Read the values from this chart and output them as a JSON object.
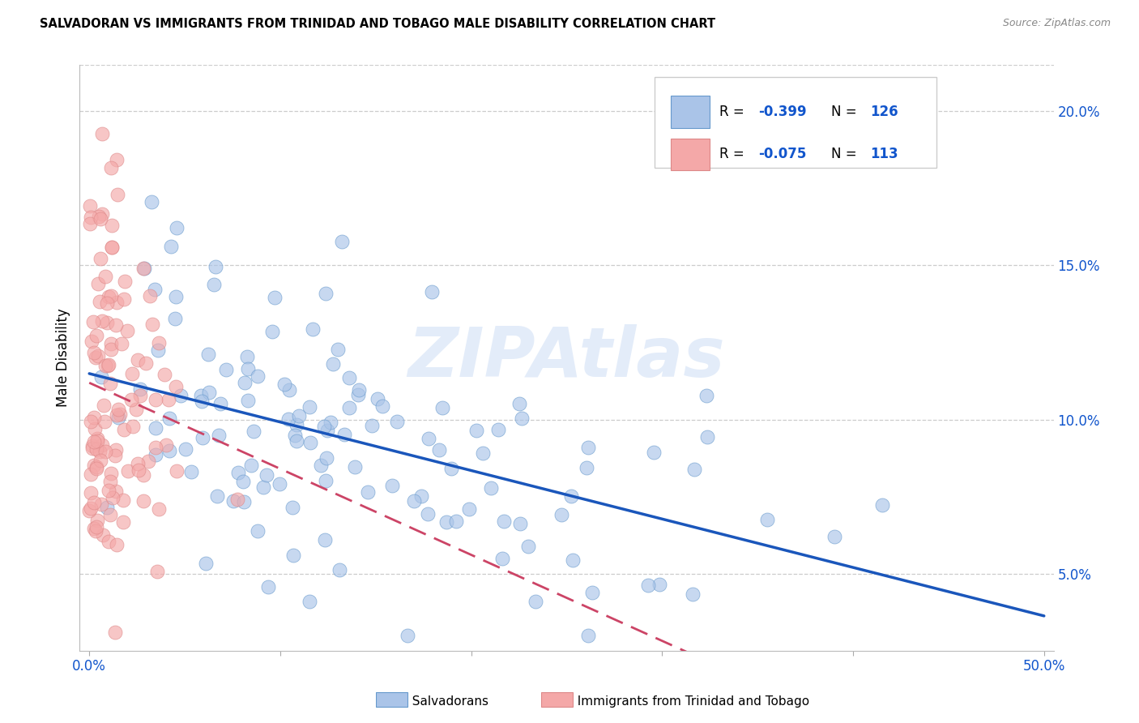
{
  "title": "SALVADORAN VS IMMIGRANTS FROM TRINIDAD AND TOBAGO MALE DISABILITY CORRELATION CHART",
  "source": "Source: ZipAtlas.com",
  "ylabel": "Male Disability",
  "xlim": [
    -0.005,
    0.505
  ],
  "ylim": [
    0.025,
    0.215
  ],
  "ytick_positions": [
    0.05,
    0.1,
    0.15,
    0.2
  ],
  "ytick_labels": [
    "5.0%",
    "10.0%",
    "15.0%",
    "20.0%"
  ],
  "xtick_positions": [
    0.0,
    0.1,
    0.2,
    0.3,
    0.4,
    0.5
  ],
  "xtick_labels": [
    "0.0%",
    "",
    "",
    "",
    "",
    "50.0%"
  ],
  "blue_fill": "#aac4e8",
  "blue_edge": "#6699cc",
  "pink_fill": "#f4a8a8",
  "pink_edge": "#dd8888",
  "blue_line_color": "#1a56bb",
  "pink_line_color": "#cc4466",
  "grid_color": "#cccccc",
  "text_blue": "#1155cc",
  "r_blue": -0.399,
  "n_blue": 126,
  "r_pink": -0.075,
  "n_pink": 113,
  "legend_label1": "Salvadorans",
  "legend_label2": "Immigrants from Trinidad and Tobago",
  "watermark": "ZIPAtlas"
}
